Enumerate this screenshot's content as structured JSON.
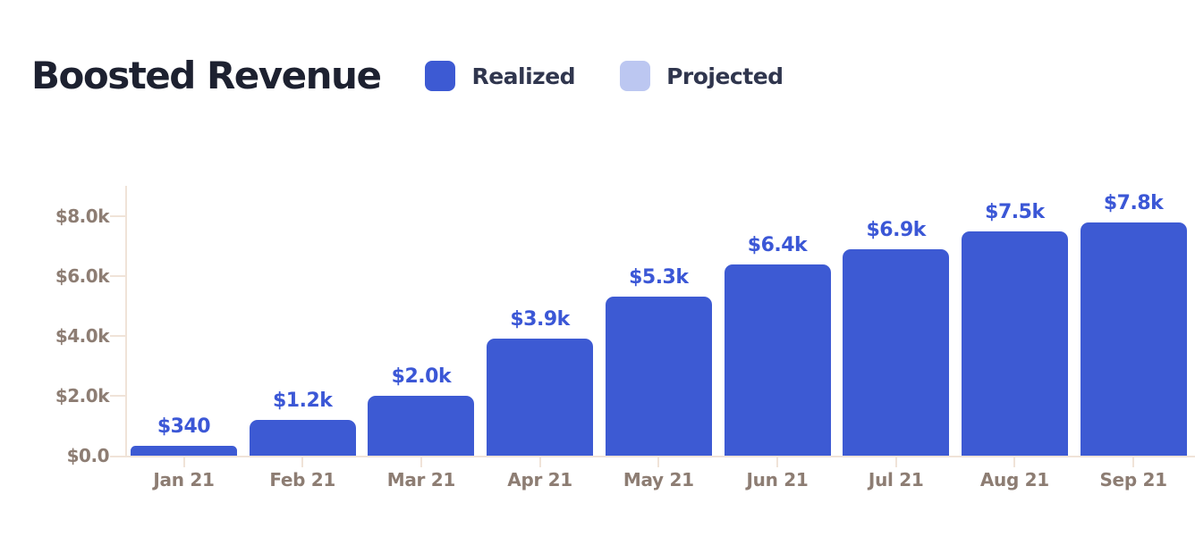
{
  "header": {
    "title": "Boosted Revenue",
    "legend": [
      {
        "label": "Realized",
        "color": "#3d5ad3"
      },
      {
        "label": "Projected",
        "color": "#bcc7f1"
      }
    ]
  },
  "chart_data": {
    "type": "bar",
    "title": "Boosted Revenue",
    "categories": [
      "Jan 21",
      "Feb 21",
      "Mar 21",
      "Apr 21",
      "May 21",
      "Jun 21",
      "Jul 21",
      "Aug 21",
      "Sep 21"
    ],
    "series": [
      {
        "name": "Realized",
        "color": "#3d5ad3",
        "values": [
          340,
          1200,
          2000,
          3900,
          5300,
          6400,
          6900,
          7500,
          7800
        ]
      },
      {
        "name": "Projected",
        "color": "#bcc7f1",
        "values": []
      }
    ],
    "value_labels": [
      "$340",
      "$1.2k",
      "$2.0k",
      "$3.9k",
      "$5.3k",
      "$6.4k",
      "$6.9k",
      "$7.5k",
      "$7.8k"
    ],
    "xlabel": "",
    "ylabel": "",
    "ylim": [
      0,
      8000
    ],
    "y_ticks": [
      {
        "value": 0,
        "label": "$0.0"
      },
      {
        "value": 2000,
        "label": "$2.0k"
      },
      {
        "value": 4000,
        "label": "$4.0k"
      },
      {
        "value": 6000,
        "label": "$6.0k"
      },
      {
        "value": 8000,
        "label": "$8.0k"
      }
    ],
    "grid": false,
    "legend_position": "top",
    "colors": {
      "bar_value_label": "#3b57d6",
      "axis_text": "#8d7d73",
      "axis_line": "#f0e3d8",
      "title_text": "#1d2130"
    }
  }
}
